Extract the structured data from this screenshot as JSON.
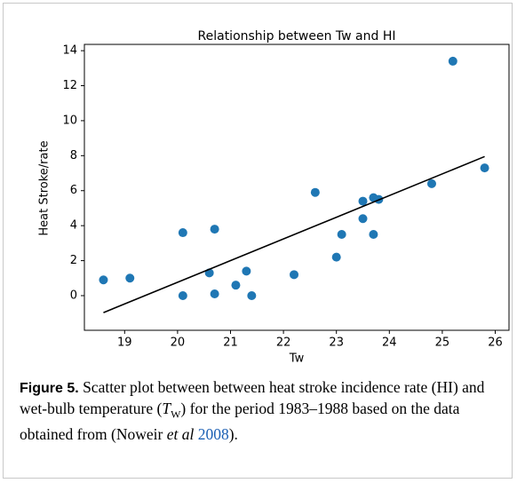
{
  "chart_data": {
    "type": "scatter",
    "title": "Relationship between Tw and HI",
    "x_label": "Tw",
    "y_label": "Heat Stroke/rate",
    "x": [
      18.6,
      19.1,
      20.1,
      20.1,
      20.6,
      20.7,
      20.7,
      21.1,
      21.3,
      21.4,
      22.2,
      22.6,
      23.0,
      23.1,
      23.5,
      23.5,
      23.7,
      23.7,
      23.8,
      24.8,
      25.2,
      25.8
    ],
    "values": [
      0.9,
      1.0,
      3.6,
      0,
      1.3,
      3.8,
      0.1,
      0.6,
      1.4,
      0,
      1.2,
      5.9,
      2.2,
      3.5,
      5.4,
      4.4,
      5.6,
      3.5,
      5.5,
      6.4,
      13.4,
      7.3
    ],
    "color": "#1f77b4",
    "fit_line": {
      "x": [
        18.6,
        25.8
      ],
      "y": [
        -0.97,
        7.95
      ],
      "color": "#000000"
    },
    "xlim": [
      18.24,
      26.26
    ],
    "ylim": [
      -1.98,
      14.36
    ],
    "xticks": [
      19,
      20,
      21,
      22,
      23,
      24,
      25,
      26
    ],
    "yticks": [
      0,
      2,
      4,
      6,
      8,
      10,
      12,
      14
    ]
  },
  "caption": {
    "label": "Figure 5.",
    "text_1": "Scatter plot between between heat stroke incidence rate (HI) and wet-bulb temperature (",
    "symbol": "T",
    "subscript": "W",
    "text_2": ") for the period 1983–1988 based on the data obtained from (Noweir",
    "citation_etal": "et al",
    "citation_year": "2008",
    "text_3": ")."
  }
}
